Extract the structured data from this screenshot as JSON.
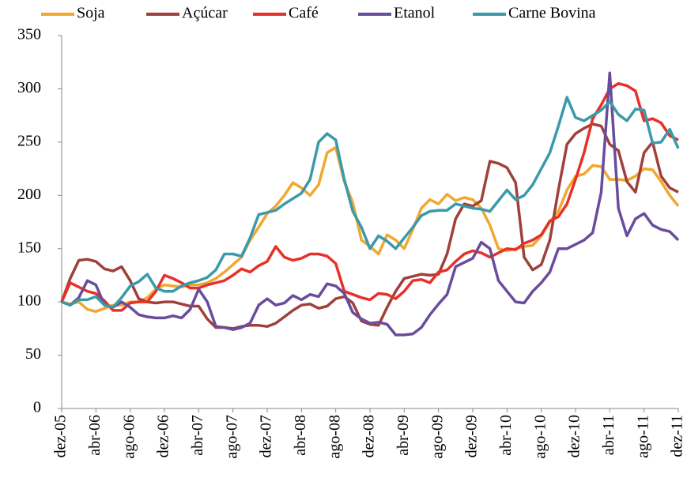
{
  "chart_data": {
    "type": "line",
    "categories": [
      "dez-05",
      null,
      null,
      null,
      "abr-06",
      null,
      null,
      null,
      "ago-06",
      null,
      null,
      null,
      "dez-06",
      null,
      null,
      null,
      "abr-07",
      null,
      null,
      null,
      "ago-07",
      null,
      null,
      null,
      "dez-07",
      null,
      null,
      null,
      "abr-08",
      null,
      null,
      null,
      "ago-08",
      null,
      null,
      null,
      "dez-08",
      null,
      null,
      null,
      "abr-09",
      null,
      null,
      null,
      "ago-09",
      null,
      null,
      null,
      "dez-09",
      null,
      null,
      null,
      "abr-10",
      null,
      null,
      null,
      "ago-10",
      null,
      null,
      null,
      "dez-10",
      null,
      null,
      null,
      "abr-11",
      null,
      null,
      null,
      "ago-11",
      null,
      null,
      null,
      "dez-11"
    ],
    "series": [
      {
        "name": "Soja",
        "color": "#f0a830",
        "values": [
          100,
          98,
          100,
          93,
          91,
          94,
          97,
          97,
          100,
          100,
          104,
          112,
          116,
          115,
          114,
          116,
          116,
          118,
          122,
          128,
          135,
          142,
          158,
          170,
          183,
          190,
          200,
          212,
          207,
          200,
          210,
          240,
          245,
          213,
          193,
          158,
          152,
          145,
          163,
          158,
          150,
          168,
          188,
          196,
          192,
          201,
          195,
          198,
          196,
          188,
          172,
          150,
          148,
          150,
          152,
          153,
          162,
          175,
          185,
          205,
          218,
          220,
          228,
          227,
          215,
          215,
          214,
          218,
          225,
          224,
          213,
          200,
          190
        ]
      },
      {
        "name": "Açúcar",
        "color": "#a0403a",
        "values": [
          100,
          122,
          139,
          140,
          138,
          131,
          129,
          133,
          120,
          103,
          100,
          99,
          100,
          100,
          98,
          96,
          96,
          84,
          76,
          76,
          75,
          77,
          78,
          78,
          77,
          80,
          86,
          92,
          97,
          98,
          94,
          96,
          103,
          105,
          99,
          82,
          79,
          78,
          95,
          110,
          122,
          124,
          126,
          125,
          126,
          145,
          178,
          192,
          190,
          195,
          232,
          230,
          226,
          212,
          142,
          130,
          135,
          158,
          205,
          248,
          258,
          263,
          267,
          265,
          248,
          242,
          213,
          203,
          240,
          250,
          218,
          207,
          203
        ]
      },
      {
        "name": "Café",
        "color": "#e8302a",
        "values": [
          100,
          118,
          114,
          110,
          108,
          101,
          92,
          92,
          99,
          100,
          100,
          110,
          125,
          122,
          118,
          113,
          113,
          116,
          118,
          120,
          125,
          131,
          128,
          134,
          138,
          152,
          142,
          139,
          141,
          145,
          145,
          143,
          136,
          110,
          107,
          104,
          102,
          108,
          107,
          103,
          110,
          120,
          121,
          118,
          128,
          130,
          138,
          145,
          148,
          146,
          142,
          146,
          150,
          149,
          155,
          158,
          163,
          176,
          180,
          192,
          215,
          240,
          272,
          285,
          300,
          305,
          303,
          298,
          270,
          272,
          268,
          256,
          252
        ]
      },
      {
        "name": "Etanol",
        "color": "#6a4c9c",
        "values": [
          100,
          97,
          104,
          120,
          116,
          97,
          95,
          100,
          95,
          88,
          86,
          85,
          85,
          87,
          85,
          93,
          112,
          100,
          77,
          76,
          74,
          76,
          80,
          97,
          103,
          97,
          99,
          106,
          102,
          107,
          105,
          117,
          115,
          108,
          90,
          84,
          80,
          81,
          79,
          69,
          69,
          70,
          76,
          88,
          98,
          107,
          133,
          137,
          141,
          156,
          150,
          120,
          110,
          100,
          99,
          110,
          118,
          128,
          150,
          150,
          154,
          158,
          165,
          203,
          315,
          188,
          162,
          178,
          183,
          172,
          168,
          166,
          158
        ]
      },
      {
        "name": "Carne Bovina",
        "color": "#3a9aaa",
        "values": [
          100,
          97,
          102,
          102,
          105,
          97,
          95,
          104,
          115,
          119,
          126,
          113,
          110,
          110,
          115,
          118,
          120,
          123,
          130,
          145,
          145,
          143,
          160,
          182,
          184,
          186,
          192,
          197,
          202,
          215,
          250,
          258,
          252,
          215,
          185,
          170,
          150,
          162,
          157,
          150,
          160,
          170,
          181,
          185,
          186,
          186,
          192,
          190,
          188,
          187,
          185,
          195,
          205,
          196,
          200,
          210,
          225,
          240,
          265,
          292,
          273,
          270,
          275,
          280,
          288,
          276,
          270,
          281,
          280,
          249,
          250,
          262,
          244
        ]
      }
    ],
    "ylim": [
      0,
      350
    ],
    "yticks": [
      0,
      50,
      100,
      150,
      200,
      250,
      300,
      350
    ],
    "grid": false,
    "legend": "top"
  }
}
